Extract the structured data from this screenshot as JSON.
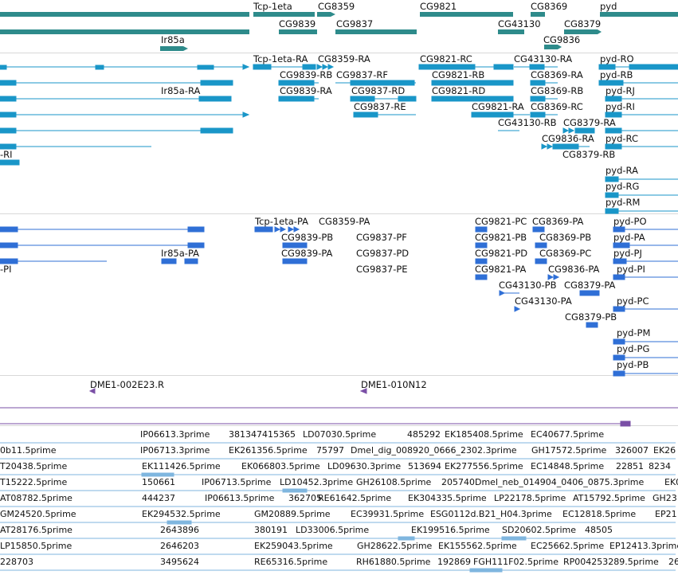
{
  "colors": {
    "gene": "#2e8b8b",
    "transcript": "#1996c8",
    "protein": "#2f6fd6",
    "clone": "#7a4fa6",
    "est": "#7fb6df"
  },
  "tracks": {
    "genes": {
      "labels": [
        "Tcp-1eta",
        "CG8359",
        "CG9821",
        "CG8369",
        "pyd",
        "CG9839",
        "CG9837",
        "CG43130",
        "CG8379",
        "CG9836",
        "Ir85a"
      ]
    },
    "transcripts": {
      "labels": [
        "Tcp-1eta-RA",
        "CG8359-RA",
        "CG9821-RC",
        "CG43130-RA",
        "pyd-RO",
        "CG9839-RB",
        "CG9837-RF",
        "CG9821-RB",
        "CG8369-RA",
        "pyd-RB",
        "Ir85a-RA",
        "CG9839-RA",
        "CG9837-RD",
        "CG9821-RD",
        "CG8369-RB",
        "pyd-RJ",
        "CG9837-RE",
        "CG9821-RA",
        "CG8369-RC",
        "pyd-RI",
        "CG43130-RB",
        "CG8379-RA",
        "CG9836-RA",
        "pyd-RC",
        "-RI",
        "CG8379-RB",
        "pyd-RA",
        "pyd-RG",
        "pyd-RM"
      ]
    },
    "proteins": {
      "labels": [
        "Tcp-1eta-PA",
        "CG8359-PA",
        "CG9821-PC",
        "CG8369-PA",
        "pyd-PO",
        "CG9839-PB",
        "CG9837-PF",
        "CG9821-PB",
        "CG8369-PB",
        "pyd-PA",
        "Ir85a-PA",
        "CG9839-PA",
        "CG9837-PD",
        "CG9821-PD",
        "CG8369-PC",
        "pyd-PJ",
        "-PI",
        "CG9837-PE",
        "CG9821-PA",
        "CG9836-PA",
        "pyd-PI",
        "CG43130-PB",
        "CG8379-PA",
        "CG43130-PA",
        "pyd-PC",
        "CG8379-PB",
        "pyd-PM",
        "pyd-PG",
        "pyd-PB"
      ]
    },
    "clones": {
      "labels": [
        "DME1-002E23.R",
        "DME1-010N12"
      ]
    },
    "ests": {
      "labels": [
        "IP06613.3prime",
        "381347415365",
        "LD07030.5prime",
        "485292",
        "EK185408.5prime",
        "EC40677.5prime",
        "0b11.5prime",
        "IP06713.3prime",
        "EK261356.5prime",
        "75797",
        "Dmel_dig_008920_0666_2302.3prime",
        "GH17572.5prime",
        "326007",
        "EK26",
        "T20438.5prime",
        "EK111426.5prime",
        "EK066803.5prime",
        "LD09630.3prime",
        "513694",
        "EK277556.5prime",
        "EC14848.5prime",
        "22851",
        "8234",
        "T15222.5prime",
        "150661",
        "IP06713.5prime",
        "LD10452.3prime",
        "GH26108.5prime",
        "205740",
        "Dmel_neb_014904_0406_0875.3prime",
        "EK0",
        "AT08782.5prime",
        "444237",
        "IP06613.5prime",
        "362705",
        "RE61642.5prime",
        "EK304335.5prime",
        "LP22178.5prime",
        "AT15792.5prime",
        "GH23",
        "GM24520.5prime",
        "EK294532.5prime",
        "GM20889.5prime",
        "EC39931.5prime",
        "ESG0112d.B21_H04.3prime",
        "EC12818.5prime",
        "EP21",
        "AT28176.5prime",
        "2643896",
        "380191",
        "LD33006.5prime",
        "EK199516.5prime",
        "SD20602.5prime",
        "48505",
        "LP15850.5prime",
        "2646203",
        "EK259043.5prime",
        "GH28622.5prime",
        "EK155562.5prime",
        "EC25662.5prime",
        "EP12413.3prime",
        "228703",
        "3495624",
        "RE65316.5prime",
        "RH61880.5prime",
        "192869",
        "FGH111F02.5prime",
        "RP004253289.5prime",
        "26"
      ]
    }
  }
}
